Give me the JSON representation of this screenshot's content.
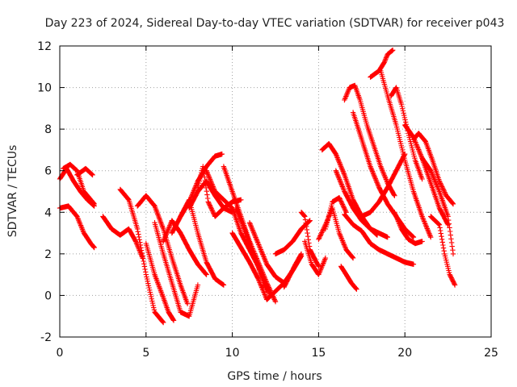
{
  "chart_data": {
    "type": "scatter",
    "title": "Day 223 of 2024, Sidereal Day-to-day VTEC variation (SDTVAR) for receiver p043",
    "xlabel": "GPS time / hours",
    "ylabel": "SDTVAR / TECUs",
    "xlim": [
      0,
      25
    ],
    "ylim": [
      -2,
      12
    ],
    "xticks": [
      "0",
      "5",
      "10",
      "15",
      "20",
      "25"
    ],
    "yticks": [
      "-2",
      "0",
      "2",
      "4",
      "6",
      "8",
      "10",
      "12"
    ],
    "grid": true,
    "marker": "+",
    "color": "#ff0000",
    "series": [
      {
        "name": "s1",
        "x": [
          0.0,
          0.4,
          0.8,
          1.2,
          1.6,
          2.0
        ],
        "y": [
          5.6,
          6.1,
          5.5,
          5.0,
          4.6,
          4.3
        ]
      },
      {
        "name": "s2",
        "x": [
          0.2,
          0.6,
          1.0,
          1.4,
          1.8,
          2.0
        ],
        "y": [
          6.1,
          6.3,
          6.0,
          5.0,
          4.6,
          4.4
        ]
      },
      {
        "name": "s3",
        "x": [
          0.0,
          0.5,
          1.0,
          1.4,
          1.8,
          2.0
        ],
        "y": [
          4.2,
          4.3,
          3.8,
          3.0,
          2.5,
          2.3
        ]
      },
      {
        "name": "s4",
        "x": [
          1.0,
          1.5,
          1.9
        ],
        "y": [
          5.8,
          6.1,
          5.8
        ]
      },
      {
        "name": "s5",
        "x": [
          2.5,
          3.0,
          3.5,
          4.0,
          4.4,
          4.8
        ],
        "y": [
          3.8,
          3.2,
          2.9,
          3.2,
          2.6,
          1.8
        ]
      },
      {
        "name": "s6",
        "x": [
          3.5,
          4.0,
          4.5,
          5.0,
          5.5,
          6.0
        ],
        "y": [
          5.1,
          4.6,
          3.2,
          1.0,
          -0.8,
          -1.3
        ]
      },
      {
        "name": "s7",
        "x": [
          4.5,
          5.0,
          5.5,
          6.0,
          6.5,
          7.0,
          7.4
        ],
        "y": [
          4.3,
          4.8,
          4.3,
          3.2,
          1.8,
          0.5,
          -0.4
        ]
      },
      {
        "name": "s8",
        "x": [
          5.0,
          5.5,
          6.0,
          6.3,
          6.6
        ],
        "y": [
          2.5,
          1.0,
          -0.1,
          -0.8,
          -1.2
        ]
      },
      {
        "name": "s9",
        "x": [
          5.5,
          6.0,
          6.5,
          7.0,
          7.5,
          8.0
        ],
        "y": [
          3.5,
          2.0,
          0.6,
          -0.8,
          -1.0,
          0.5
        ]
      },
      {
        "name": "s10",
        "x": [
          6.0,
          6.5,
          7.0,
          7.5,
          8.0,
          8.5
        ],
        "y": [
          2.6,
          3.6,
          3.0,
          2.2,
          1.5,
          1.0
        ]
      },
      {
        "name": "s11",
        "x": [
          6.5,
          7.0,
          7.5,
          8.0,
          8.5,
          9.0,
          9.4
        ],
        "y": [
          3.0,
          3.8,
          4.5,
          5.5,
          6.2,
          6.7,
          6.8
        ]
      },
      {
        "name": "s12",
        "x": [
          7.0,
          7.5,
          8.0,
          8.5,
          9.0,
          9.5
        ],
        "y": [
          3.8,
          4.6,
          3.0,
          1.6,
          0.8,
          0.5
        ]
      },
      {
        "name": "s13",
        "x": [
          7.5,
          8.0,
          8.5,
          9.0,
          9.5,
          10.0
        ],
        "y": [
          4.2,
          5.0,
          5.5,
          4.8,
          4.2,
          4.0
        ]
      },
      {
        "name": "s14",
        "x": [
          8.0,
          8.3,
          8.6,
          9.0,
          9.5,
          10.0,
          10.5
        ],
        "y": [
          5.2,
          6.2,
          4.5,
          3.8,
          4.2,
          4.5,
          4.6
        ]
      },
      {
        "name": "s15",
        "x": [
          8.5,
          9.0,
          9.5,
          10.0,
          10.5,
          11.0,
          11.5,
          12.0
        ],
        "y": [
          6.0,
          5.0,
          4.6,
          4.2,
          3.0,
          2.2,
          1.4,
          0.2
        ]
      },
      {
        "name": "s16",
        "x": [
          9.5,
          10.0,
          10.5,
          11.0,
          11.5,
          12.0,
          12.5
        ],
        "y": [
          6.2,
          5.0,
          3.8,
          2.6,
          1.6,
          0.6,
          -0.3
        ]
      },
      {
        "name": "s17",
        "x": [
          10.0,
          10.5,
          11.0,
          11.5,
          12.0,
          12.5,
          13.0
        ],
        "y": [
          3.0,
          2.3,
          1.6,
          0.8,
          -0.2,
          0.2,
          0.6
        ]
      },
      {
        "name": "s18",
        "x": [
          10.2,
          10.7,
          11.2,
          11.7,
          12.2
        ],
        "y": [
          4.2,
          3.2,
          2.0,
          1.0,
          0.0
        ]
      },
      {
        "name": "s19",
        "x": [
          11.0,
          11.5,
          12.0,
          12.5,
          13.0,
          13.5,
          14.0
        ],
        "y": [
          3.5,
          2.5,
          1.5,
          0.9,
          0.6,
          1.2,
          1.9
        ]
      },
      {
        "name": "s20",
        "x": [
          12.5,
          13.0,
          13.5,
          14.0,
          14.5
        ],
        "y": [
          2.0,
          2.2,
          2.6,
          3.2,
          3.6
        ]
      },
      {
        "name": "s21",
        "x": [
          13.0,
          13.3,
          13.6,
          14.0
        ],
        "y": [
          0.4,
          0.9,
          1.4,
          2.0
        ]
      },
      {
        "name": "s22",
        "x": [
          14.0,
          14.2,
          14.5,
          15.0
        ],
        "y": [
          4.0,
          3.8,
          2.2,
          1.4
        ]
      },
      {
        "name": "s23",
        "x": [
          14.2,
          14.6,
          15.0,
          15.4
        ],
        "y": [
          2.6,
          1.5,
          1.0,
          1.8
        ]
      },
      {
        "name": "s24",
        "x": [
          15.0,
          15.4,
          15.8,
          16.2,
          16.6,
          17.0
        ],
        "y": [
          2.7,
          3.4,
          4.2,
          3.0,
          2.2,
          1.8
        ]
      },
      {
        "name": "s25",
        "x": [
          15.2,
          15.6,
          16.0,
          16.5,
          17.0,
          17.5,
          18.0,
          18.4
        ],
        "y": [
          7.0,
          7.3,
          6.8,
          5.8,
          4.6,
          3.8,
          3.2,
          2.9
        ]
      },
      {
        "name": "s26",
        "x": [
          15.4,
          15.8,
          16.2,
          16.6
        ],
        "y": [
          3.2,
          4.5,
          4.7,
          4.0
        ]
      },
      {
        "name": "s27",
        "x": [
          16.0,
          16.5,
          17.0,
          17.5,
          18.0,
          18.5,
          19.0
        ],
        "y": [
          6.0,
          5.0,
          4.2,
          3.6,
          3.2,
          3.0,
          2.8
        ]
      },
      {
        "name": "s28",
        "x": [
          16.5,
          17.0,
          17.5,
          18.0,
          18.5,
          19.0,
          19.5,
          20.0,
          20.5
        ],
        "y": [
          3.9,
          3.4,
          3.1,
          2.5,
          2.2,
          2.0,
          1.8,
          1.6,
          1.5
        ]
      },
      {
        "name": "s29",
        "x": [
          16.3,
          16.6,
          16.9,
          17.2
        ],
        "y": [
          1.4,
          1.0,
          0.6,
          0.3
        ]
      },
      {
        "name": "s30",
        "x": [
          16.5,
          16.8,
          17.1,
          17.4,
          17.8,
          18.2,
          18.6,
          19.0,
          19.4
        ],
        "y": [
          9.4,
          10.0,
          10.1,
          9.4,
          8.2,
          7.2,
          6.2,
          5.4,
          4.8
        ]
      },
      {
        "name": "s31",
        "x": [
          17.0,
          17.5,
          18.0,
          18.5,
          19.0,
          19.5,
          20.0,
          20.5
        ],
        "y": [
          8.8,
          7.5,
          6.2,
          5.2,
          4.4,
          3.8,
          3.2,
          2.8
        ]
      },
      {
        "name": "s32",
        "x": [
          17.5,
          18.0,
          18.5,
          19.0,
          19.5,
          20.0
        ],
        "y": [
          3.8,
          4.0,
          4.5,
          5.2,
          6.0,
          6.8
        ]
      },
      {
        "name": "s33",
        "x": [
          18.0,
          18.5,
          18.8,
          19.0,
          19.3
        ],
        "y": [
          10.5,
          10.8,
          11.2,
          11.6,
          11.8
        ]
      },
      {
        "name": "s34",
        "x": [
          18.6,
          19.0,
          19.5,
          20.0,
          20.5,
          21.0,
          21.5
        ],
        "y": [
          10.8,
          9.6,
          8.2,
          6.5,
          5.0,
          3.8,
          2.8
        ]
      },
      {
        "name": "s35",
        "x": [
          19.2,
          19.5,
          19.8,
          20.2,
          20.6,
          21.0
        ],
        "y": [
          9.6,
          10.0,
          9.2,
          7.8,
          6.5,
          5.6
        ]
      },
      {
        "name": "s36",
        "x": [
          19.4,
          19.8,
          20.2,
          20.6,
          21.0
        ],
        "y": [
          4.0,
          3.2,
          2.7,
          2.5,
          2.6
        ]
      },
      {
        "name": "s37",
        "x": [
          20.0,
          20.5,
          21.0,
          21.5,
          22.0,
          22.5
        ],
        "y": [
          8.2,
          7.6,
          6.6,
          5.4,
          4.2,
          3.4
        ]
      },
      {
        "name": "s38",
        "x": [
          20.5,
          20.8,
          21.2,
          21.6,
          22.0,
          22.4,
          22.8
        ],
        "y": [
          7.5,
          7.8,
          7.4,
          6.5,
          5.5,
          4.8,
          4.4
        ]
      },
      {
        "name": "s39",
        "x": [
          21.0,
          21.5,
          22.0,
          22.5,
          22.8
        ],
        "y": [
          6.6,
          6.0,
          5.0,
          3.8,
          2.0
        ]
      },
      {
        "name": "s40",
        "x": [
          21.5,
          22.0,
          22.3,
          22.6,
          22.9
        ],
        "y": [
          3.8,
          3.4,
          2.0,
          1.0,
          0.5
        ]
      }
    ]
  }
}
